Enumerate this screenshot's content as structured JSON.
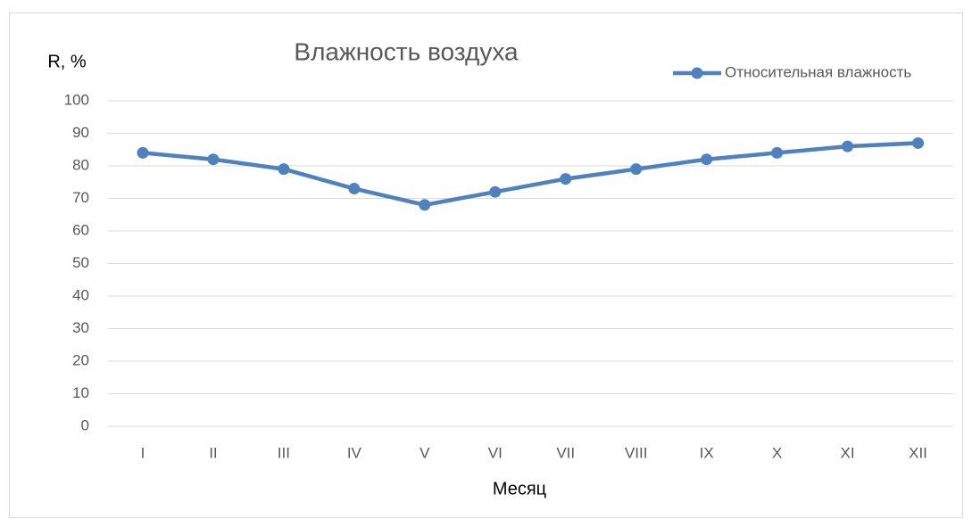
{
  "chart_data": {
    "type": "line",
    "title": "Влажность воздуха",
    "y_label": "R, %",
    "x_label": "Месяц",
    "categories": [
      "I",
      "II",
      "III",
      "IV",
      "V",
      "VI",
      "VII",
      "VIII",
      "IX",
      "X",
      "XI",
      "XII"
    ],
    "series": [
      {
        "name": "Относительная влажность",
        "color": "#4f81bd",
        "values": [
          84,
          82,
          79,
          73,
          68,
          72,
          76,
          79,
          82,
          84,
          86,
          87
        ]
      }
    ],
    "ylim": [
      0,
      100
    ],
    "yticks": [
      0,
      10,
      20,
      30,
      40,
      50,
      60,
      70,
      80,
      90,
      100
    ],
    "grid": true,
    "legend": "top-right"
  }
}
